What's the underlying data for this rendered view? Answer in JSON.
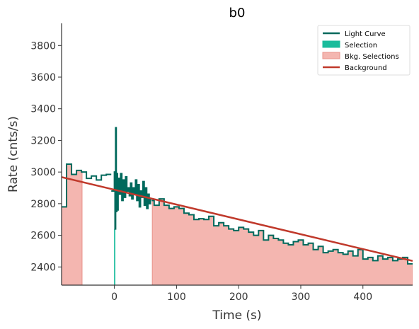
{
  "chart_data": {
    "type": "line",
    "title": "b0",
    "xlabel": "Time (s)",
    "ylabel": "Rate (cnts/s)",
    "xlim": [
      -85,
      480
    ],
    "ylim": [
      2285,
      3940
    ],
    "x_ticks": [
      0,
      100,
      200,
      300,
      400
    ],
    "y_ticks": [
      2400,
      2600,
      2800,
      3000,
      3200,
      3400,
      3600,
      3800
    ],
    "grid": false,
    "legend_position": "top-right",
    "colors": {
      "light_curve": "#00695c",
      "selection": "#1abc9c",
      "bkg_selection": "#f4b6b0",
      "bkg_selection_edge": "#e8928a",
      "background": "#c0392b",
      "axis": "#333333"
    },
    "legend": [
      {
        "key": "light_curve",
        "label": "Light Curve"
      },
      {
        "key": "selection",
        "label": "Selection"
      },
      {
        "key": "bkg_selection",
        "label": "Bkg. Selections"
      },
      {
        "key": "background",
        "label": "Background"
      }
    ],
    "selection": {
      "x": [
        -0.5,
        1.5
      ]
    },
    "bkg_selections": [
      {
        "x": [
          -85,
          -52
        ]
      },
      {
        "x": [
          61,
          480
        ]
      }
    ],
    "background": {
      "x": [
        -85,
        480
      ],
      "y": [
        2968,
        2438
      ]
    },
    "light_curve": {
      "step_edges": [
        -85,
        -77,
        -69,
        -61,
        -53,
        -45,
        -37,
        -29,
        -21,
        -13,
        -5,
        0,
        8,
        16,
        24,
        32,
        40,
        48,
        56,
        64,
        72,
        80,
        88,
        96,
        104,
        112,
        120,
        128,
        136,
        144,
        152,
        160,
        168,
        176,
        184,
        192,
        200,
        208,
        216,
        224,
        232,
        240,
        248,
        256,
        264,
        272,
        280,
        288,
        296,
        304,
        312,
        320,
        328,
        336,
        344,
        352,
        360,
        368,
        376,
        384,
        392,
        400,
        408,
        416,
        424,
        432,
        440,
        448,
        456,
        464,
        472,
        480
      ],
      "step_values": [
        2780,
        3050,
        2985,
        3010,
        3000,
        2960,
        2975,
        2950,
        2980,
        2985,
        2985,
        2880,
        2930,
        2870,
        2850,
        2900,
        2860,
        2840,
        2820,
        2790,
        2830,
        2790,
        2770,
        2780,
        2770,
        2740,
        2730,
        2700,
        2705,
        2700,
        2720,
        2660,
        2680,
        2660,
        2640,
        2630,
        2650,
        2640,
        2620,
        2600,
        2630,
        2570,
        2600,
        2580,
        2570,
        2550,
        2540,
        2560,
        2570,
        2540,
        2550,
        2510,
        2530,
        2490,
        2500,
        2510,
        2490,
        2480,
        2500,
        2470,
        2510,
        2450,
        2460,
        2440,
        2470,
        2450,
        2460,
        2440,
        2450,
        2460,
        2420
      ],
      "spike_x": [
        -5,
        0,
        1,
        2,
        3,
        4,
        5,
        6,
        8,
        10,
        12,
        14,
        16,
        18,
        20,
        22,
        24,
        26,
        28,
        30,
        32,
        34,
        36,
        38,
        40,
        42,
        44,
        46,
        48,
        50,
        52,
        54,
        56,
        58,
        60
      ],
      "spike_y": [
        2880,
        3000,
        2640,
        3280,
        2750,
        2990,
        2760,
        2960,
        2860,
        2990,
        2820,
        2950,
        2840,
        2970,
        2880,
        2900,
        2850,
        2930,
        2830,
        2900,
        2860,
        2950,
        2820,
        2920,
        2780,
        2880,
        2840,
        2940,
        2790,
        2900,
        2770,
        2860,
        2800,
        2830,
        2790
      ]
    }
  }
}
